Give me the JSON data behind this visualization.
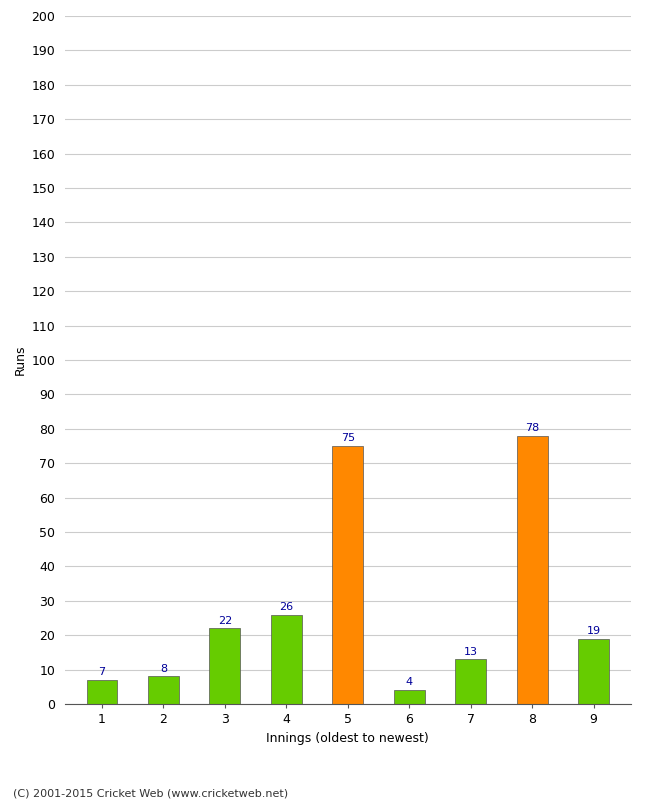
{
  "categories": [
    1,
    2,
    3,
    4,
    5,
    6,
    7,
    8,
    9
  ],
  "values": [
    7,
    8,
    22,
    26,
    75,
    4,
    13,
    78,
    19
  ],
  "bar_colors": [
    "#66cc00",
    "#66cc00",
    "#66cc00",
    "#66cc00",
    "#ff8800",
    "#66cc00",
    "#66cc00",
    "#ff8800",
    "#66cc00"
  ],
  "xlabel": "Innings (oldest to newest)",
  "ylabel": "Runs",
  "ylim": [
    0,
    200
  ],
  "yticks": [
    0,
    10,
    20,
    30,
    40,
    50,
    60,
    70,
    80,
    90,
    100,
    110,
    120,
    130,
    140,
    150,
    160,
    170,
    180,
    190,
    200
  ],
  "label_color": "#000099",
  "background_color": "#ffffff",
  "footer": "(C) 2001-2015 Cricket Web (www.cricketweb.net)",
  "bar_edge_color": "#555555",
  "grid_color": "#cccccc"
}
